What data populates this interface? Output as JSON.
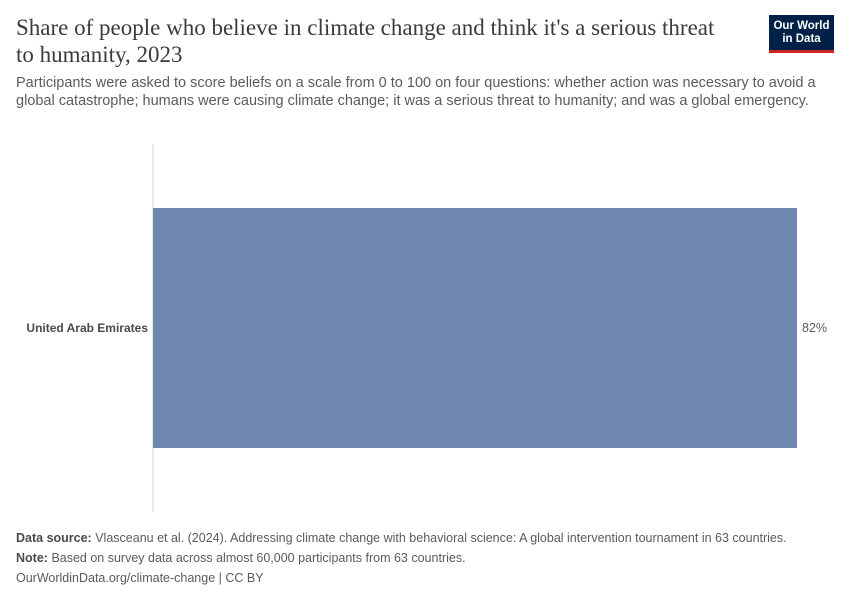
{
  "header": {
    "title": "Share of people who believe in climate change and think it's a serious threat to humanity, 2023",
    "subtitle": "Participants were asked to score beliefs on a scale from 0 to 100 on four questions: whether action was necessary to avoid a global catastrophe; humans were causing climate change; it was a serious threat to humanity; and was a global emergency."
  },
  "logo": {
    "line1": "Our World",
    "line2": "in Data"
  },
  "chart_data": {
    "type": "bar",
    "orientation": "horizontal",
    "categories": [
      "United Arab Emirates"
    ],
    "values": [
      82
    ],
    "value_labels": [
      "82%"
    ],
    "xlim": [
      0,
      82
    ],
    "bar_color": "#6e87b0",
    "grid": false
  },
  "footer": {
    "source_label": "Data source:",
    "source_text": "Vlasceanu et al. (2024). Addressing climate change with behavioral science: A global intervention tournament in 63 countries.",
    "note_label": "Note:",
    "note_text": "Based on survey data across almost 60,000 participants from 63 countries.",
    "credit": "OurWorldinData.org/climate-change | CC BY"
  }
}
